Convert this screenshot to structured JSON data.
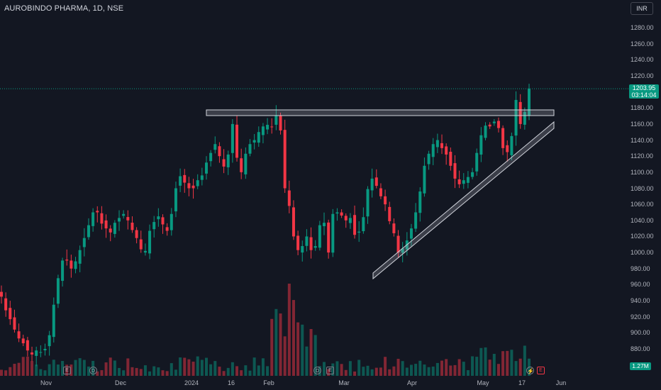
{
  "title": "AUROBINDO PHARMA, 1D, NSE",
  "currency_button": "INR",
  "last_price": "1203.95",
  "countdown": "03:14:04",
  "volume_tag": "1.27M",
  "price_axis": [
    "1280.00",
    "1260.00",
    "1240.00",
    "1220.00",
    "1200.00",
    "1180.00",
    "1160.00",
    "1140.00",
    "1120.00",
    "1100.00",
    "1080.00",
    "1060.00",
    "1040.00",
    "1020.00",
    "1000.00",
    "980.00",
    "960.00",
    "940.00",
    "920.00",
    "900.00",
    "880.00"
  ],
  "time_axis": [
    "Nov",
    "Dec",
    "2024",
    "16",
    "Feb",
    "Mar",
    "Apr",
    "May",
    "17",
    "Jun"
  ],
  "events": {
    "e1": "E",
    "d1": "D",
    "d2": "D",
    "e2": "E",
    "lightning": "⚡",
    "e3": "E"
  },
  "colors": {
    "up": "#089981",
    "down": "#f23645",
    "background": "#131722",
    "trendline": "#b2b5be"
  },
  "chart_data": {
    "type": "candlestick",
    "symbol": "AUROBINDO PHARMA",
    "interval": "1D",
    "exchange": "NSE",
    "currency": "INR",
    "ylim": [
      870,
      1290
    ],
    "last_price": 1203.95,
    "price_path": [
      945,
      928,
      917,
      904,
      893,
      887,
      878,
      873,
      878,
      876,
      880,
      897,
      935,
      968,
      990,
      990,
      980,
      989,
      1003,
      1018,
      1034,
      1050,
      1050,
      1036,
      1030,
      1025,
      1037,
      1043,
      1048,
      1040,
      1028,
      1018,
      1004,
      1002,
      1027,
      1038,
      1045,
      1035,
      1027,
      1048,
      1080,
      1095,
      1087,
      1080,
      1080,
      1090,
      1096,
      1112,
      1124,
      1135,
      1120,
      1107,
      1122,
      1160,
      1118,
      1100,
      1123,
      1135,
      1140,
      1150,
      1157,
      1159,
      1156,
      1171,
      1152,
      1080,
      1058,
      1020,
      1003,
      1008,
      1020,
      1003,
      1008,
      1034,
      1037,
      1000,
      1048,
      1050,
      1046,
      1040,
      1043,
      1022,
      1026,
      1044,
      1079,
      1092,
      1083,
      1070,
      1060,
      1039,
      1024,
      1000,
      1005,
      1015,
      1030,
      1050,
      1076,
      1108,
      1123,
      1135,
      1140,
      1130,
      1122,
      1108,
      1092,
      1085,
      1090,
      1094,
      1100,
      1124,
      1146,
      1158,
      1157,
      1163,
      1155,
      1130,
      1125,
      1145,
      1190,
      1160,
      1175,
      1204
    ],
    "volume_spikes": [
      {
        "date": "Feb",
        "level": "high"
      },
      {
        "date": "Apr-May",
        "level": "medium"
      }
    ],
    "annotations": [
      {
        "type": "horizontal_resistance",
        "price": 1176
      },
      {
        "type": "rising_trendline",
        "from_price": 975,
        "to_price": 1163
      }
    ]
  }
}
